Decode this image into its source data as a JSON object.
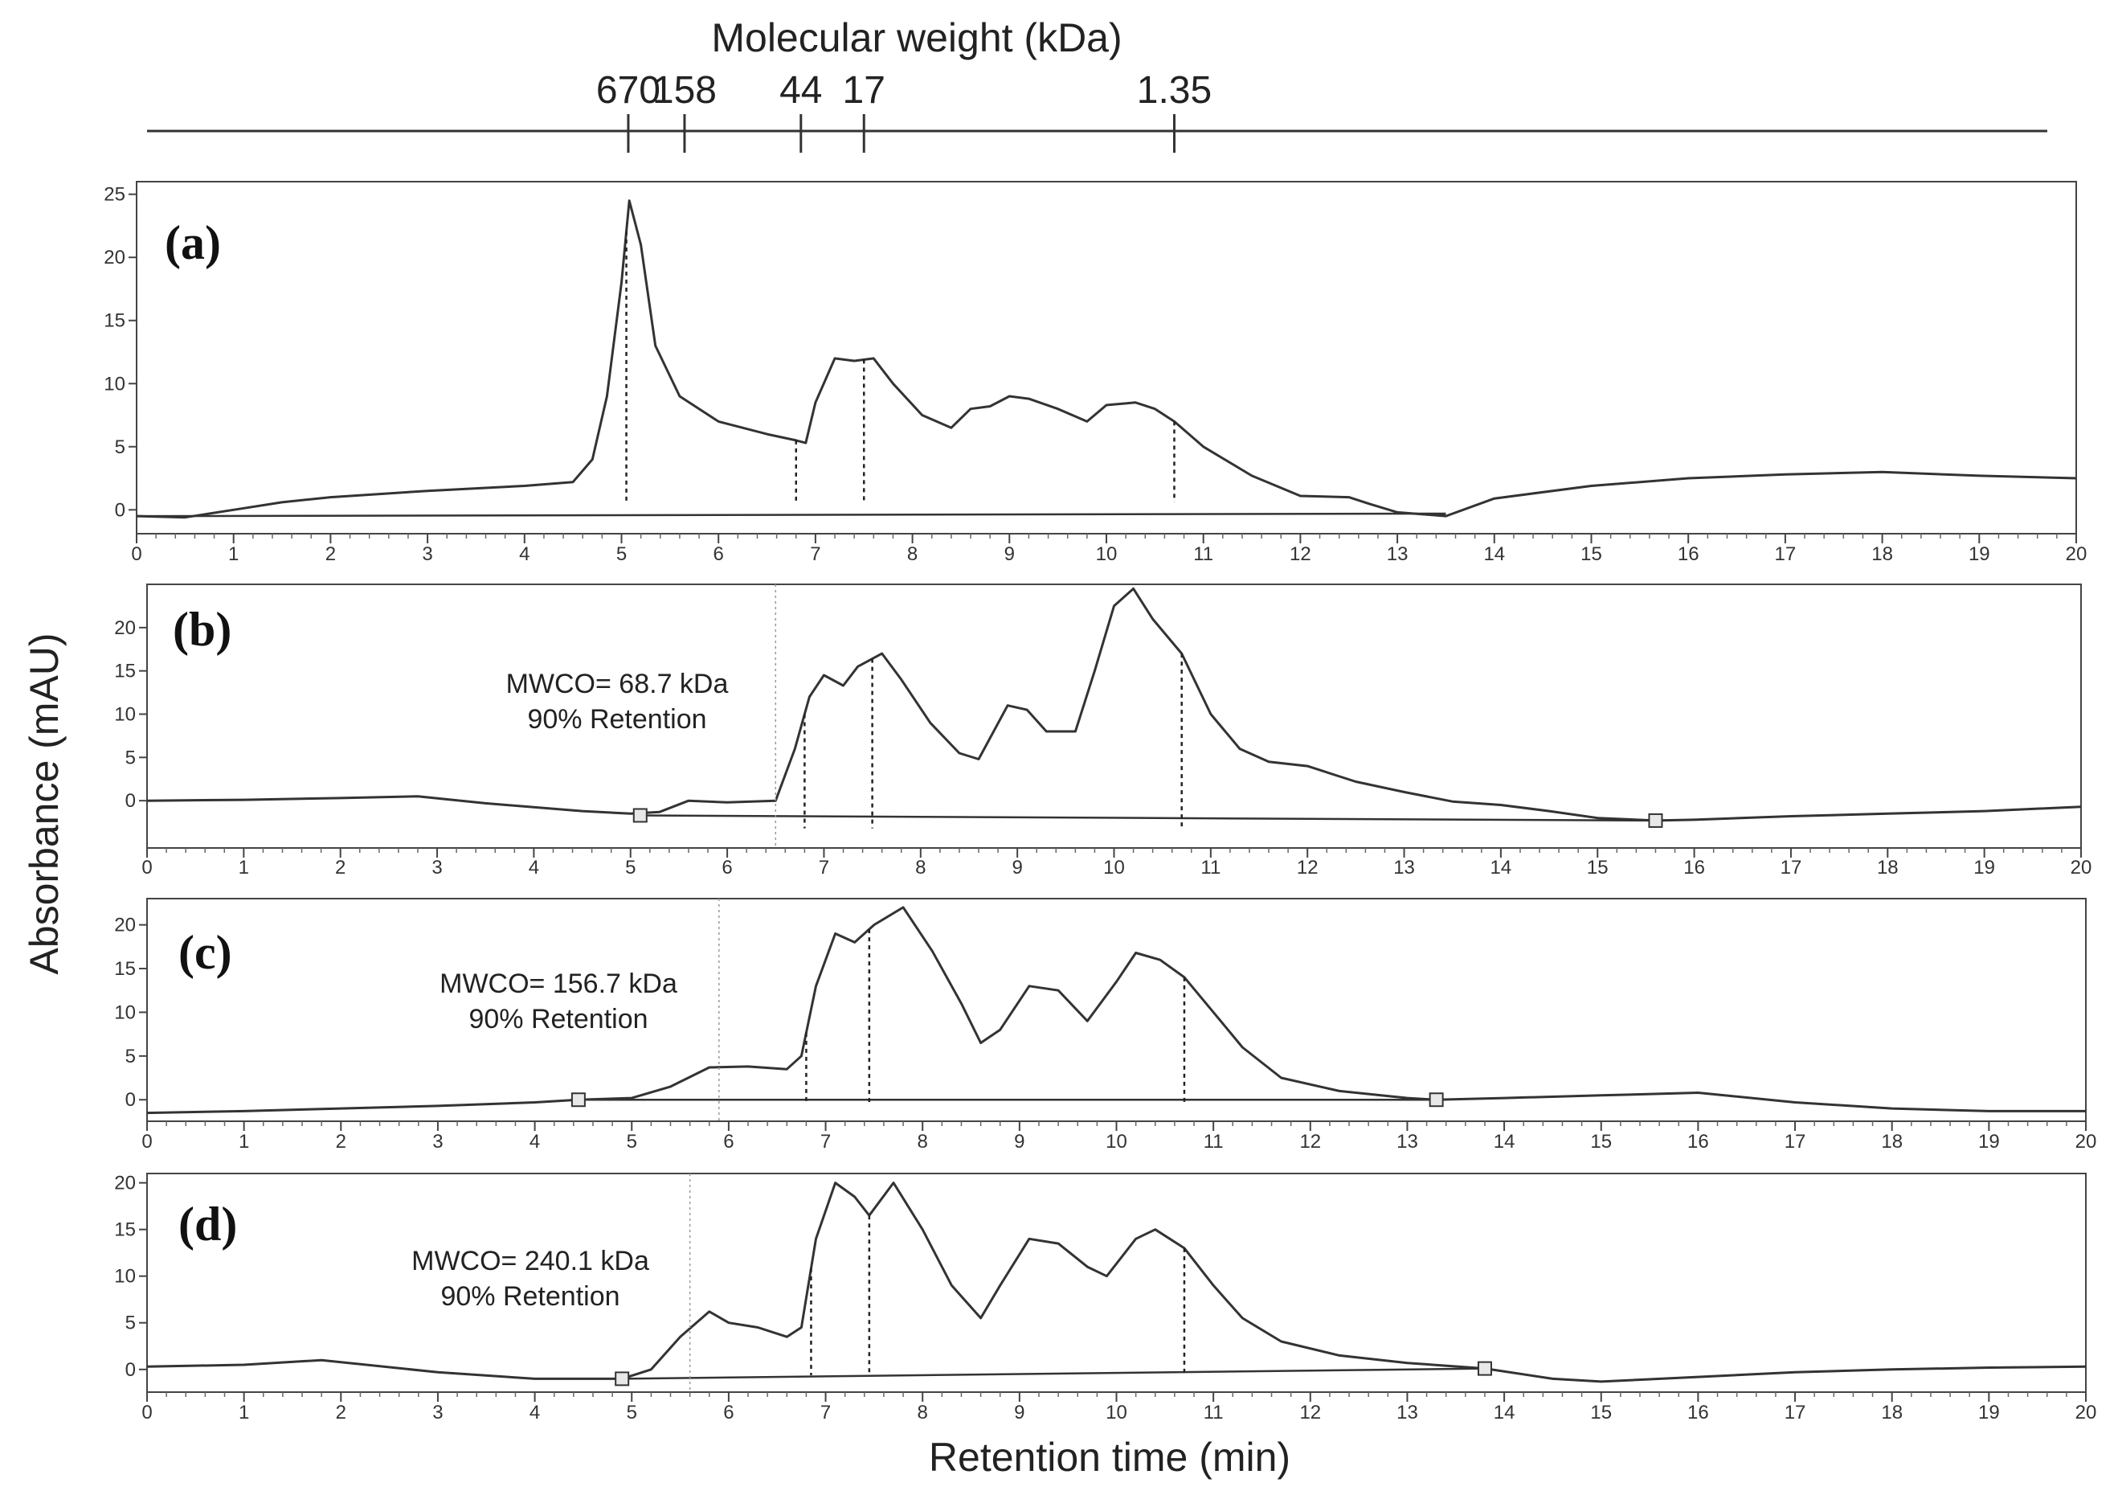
{
  "figure": {
    "top_axis_title": "Molecular weight (kDa)",
    "y_axis_title": "Absorbance (mAU)",
    "x_axis_title": "Retention time (min)"
  },
  "chart_data": {
    "type": "line",
    "x_label": "Retention time (min)",
    "y_label": "Absorbance (mAU)",
    "x_range": [
      0,
      20
    ],
    "x_ticks": [
      "0",
      "1",
      "2",
      "3",
      "4",
      "5",
      "6",
      "7",
      "8",
      "9",
      "10",
      "11",
      "12",
      "13",
      "14",
      "15",
      "16",
      "17",
      "18",
      "19",
      "20"
    ],
    "molecular_weight_scale": {
      "title": "Molecular weight (kDa)",
      "markers": [
        {
          "label": "670",
          "retention_time": 5.07
        },
        {
          "label": "158",
          "retention_time": 5.65
        },
        {
          "label": "44",
          "retention_time": 6.85
        },
        {
          "label": "17",
          "retention_time": 7.5
        },
        {
          "label": "1.35",
          "retention_time": 10.7
        }
      ]
    },
    "panels": [
      {
        "label": "(a)",
        "y_range": [
          -1,
          26
        ],
        "y_ticks": [
          "0",
          "5",
          "10",
          "15",
          "20",
          "25"
        ],
        "marker_times": [
          5.05,
          6.8,
          7.5,
          10.7
        ],
        "baseline": [
          [
            0,
            -0.5
          ],
          [
            13.5,
            -0.3
          ]
        ],
        "x": [
          0,
          0.5,
          1,
          1.5,
          2,
          3,
          4,
          4.5,
          4.7,
          4.85,
          5.0,
          5.08,
          5.2,
          5.35,
          5.6,
          6,
          6.5,
          6.8,
          6.9,
          7.0,
          7.2,
          7.4,
          7.6,
          7.8,
          8.1,
          8.4,
          8.6,
          8.8,
          9.0,
          9.2,
          9.5,
          9.8,
          10.0,
          10.3,
          10.5,
          10.7,
          11,
          11.5,
          12,
          12.5,
          12.7,
          13,
          13.5,
          14,
          15,
          16,
          17,
          18,
          19,
          20
        ],
        "y": [
          -0.5,
          -0.6,
          0,
          0.6,
          1.0,
          1.5,
          1.9,
          2.2,
          4,
          9,
          18,
          24.5,
          21,
          13,
          9,
          7,
          6,
          5.5,
          5.3,
          8.5,
          12,
          11.8,
          12,
          10,
          7.5,
          6.5,
          8,
          8.2,
          9,
          8.8,
          8,
          7,
          8.3,
          8.5,
          8,
          7,
          5,
          2.7,
          1.1,
          1.0,
          0.5,
          -0.2,
          -0.5,
          0.9,
          1.9,
          2.5,
          2.8,
          3,
          2.7,
          2.5
        ]
      },
      {
        "label": "(b)",
        "y_range": [
          -5,
          25
        ],
        "y_ticks": [
          "0",
          "5",
          "10",
          "15",
          "20"
        ],
        "mwco": "MWCO= 68.7 kDa",
        "retention": "90% Retention",
        "cutoff_time": 6.5,
        "marker_times": [
          6.8,
          7.5,
          10.7
        ],
        "square_markers": [
          [
            5.1,
            -1.7
          ],
          [
            15.6,
            -2.3
          ]
        ],
        "baseline": [
          [
            5.1,
            -1.7
          ],
          [
            15.6,
            -2.3
          ]
        ],
        "x": [
          0,
          1,
          2,
          2.8,
          3.5,
          4.5,
          5.0,
          5.3,
          5.6,
          6,
          6.5,
          6.7,
          6.85,
          7.0,
          7.2,
          7.35,
          7.6,
          7.8,
          8.1,
          8.4,
          8.6,
          8.9,
          9.1,
          9.3,
          9.6,
          9.8,
          10.0,
          10.2,
          10.4,
          10.7,
          11,
          11.3,
          11.6,
          12,
          12.5,
          13,
          13.5,
          14,
          14.5,
          15,
          15.6,
          16,
          17,
          18,
          19,
          20
        ],
        "y": [
          0,
          0.1,
          0.3,
          0.5,
          -0.3,
          -1.2,
          -1.5,
          -1.3,
          0,
          -0.2,
          0,
          6,
          12,
          14.5,
          13.3,
          15.5,
          17,
          14,
          9,
          5.5,
          4.8,
          11,
          10.5,
          8,
          8,
          15,
          22.5,
          24.5,
          21,
          17,
          10,
          6,
          4.5,
          4,
          2.2,
          1,
          -0.1,
          -0.5,
          -1.2,
          -2,
          -2.3,
          -2.2,
          -1.8,
          -1.5,
          -1.2,
          -0.7
        ]
      },
      {
        "label": "(c)",
        "y_range": [
          -2,
          23
        ],
        "y_ticks": [
          "0",
          "5",
          "10",
          "15",
          "20"
        ],
        "mwco": "MWCO= 156.7 kDa",
        "retention": "90% Retention",
        "cutoff_time": 5.9,
        "marker_times": [
          6.8,
          7.45,
          10.7
        ],
        "square_markers": [
          [
            4.45,
            0
          ],
          [
            13.3,
            0
          ]
        ],
        "baseline": [
          [
            4.45,
            0
          ],
          [
            13.3,
            0
          ]
        ],
        "x": [
          0,
          1,
          2,
          3,
          4,
          4.45,
          5,
          5.4,
          5.8,
          6.2,
          6.6,
          6.75,
          6.9,
          7.1,
          7.3,
          7.5,
          7.8,
          8.1,
          8.4,
          8.6,
          8.8,
          9.1,
          9.4,
          9.7,
          10.0,
          10.2,
          10.45,
          10.7,
          11,
          11.3,
          11.7,
          12.3,
          13,
          13.3,
          14,
          15,
          16,
          17,
          18,
          19,
          20
        ],
        "y": [
          -1.5,
          -1.3,
          -1,
          -0.7,
          -0.3,
          0,
          0.2,
          1.5,
          3.7,
          3.8,
          3.5,
          5,
          13,
          19,
          18,
          20,
          22,
          17,
          11,
          6.5,
          8,
          13,
          12.5,
          9,
          13.5,
          16.8,
          16,
          14,
          10,
          6,
          2.5,
          1,
          0.2,
          0,
          0.2,
          0.5,
          0.8,
          -0.3,
          -1,
          -1.3,
          -1.3
        ]
      },
      {
        "label": "(d)",
        "y_range": [
          -2,
          21
        ],
        "y_ticks": [
          "0",
          "5",
          "10",
          "15",
          "20"
        ],
        "mwco": "MWCO= 240.1 kDa",
        "retention": "90% Retention",
        "cutoff_time": 5.6,
        "marker_times": [
          6.85,
          7.45,
          10.7
        ],
        "square_markers": [
          [
            4.9,
            -1
          ],
          [
            13.8,
            0.1
          ]
        ],
        "baseline": [
          [
            4.9,
            -1
          ],
          [
            13.8,
            0.1
          ]
        ],
        "x": [
          0,
          1,
          1.8,
          3,
          4,
          4.9,
          5.2,
          5.5,
          5.8,
          6.0,
          6.3,
          6.6,
          6.75,
          6.9,
          7.1,
          7.3,
          7.45,
          7.7,
          8.0,
          8.3,
          8.6,
          8.8,
          9.1,
          9.4,
          9.7,
          9.9,
          10.2,
          10.4,
          10.7,
          11,
          11.3,
          11.7,
          12.3,
          13,
          13.8,
          14.5,
          15,
          16,
          17,
          18,
          19,
          20
        ],
        "y": [
          0.3,
          0.5,
          1,
          -0.3,
          -1,
          -1,
          0,
          3.5,
          6.2,
          5,
          4.5,
          3.5,
          4.5,
          14,
          20,
          18.5,
          16.5,
          20,
          15,
          9,
          5.5,
          9,
          14,
          13.5,
          11,
          10,
          14,
          15,
          13,
          9,
          5.5,
          3,
          1.5,
          0.7,
          0.1,
          -1,
          -1.3,
          -0.8,
          -0.3,
          0,
          0.2,
          0.3
        ]
      }
    ]
  }
}
